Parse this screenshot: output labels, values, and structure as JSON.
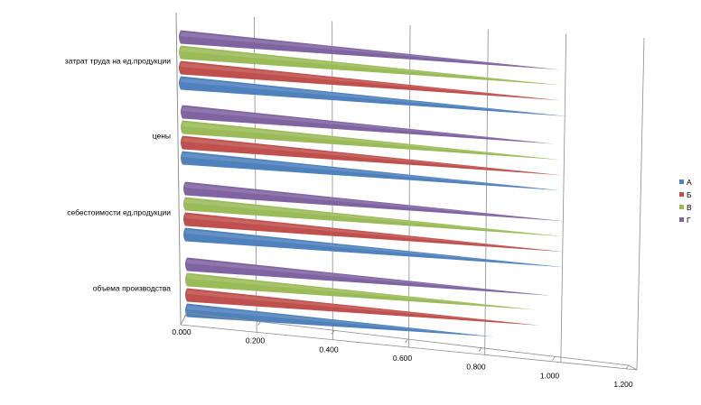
{
  "chart_data": {
    "type": "bar",
    "orientation": "horizontal",
    "style": "3d-cone",
    "categories": [
      "затрат труда на ед.продукции",
      "цены",
      "себестоимости ед.продукции",
      "объема производства"
    ],
    "series": [
      {
        "name": "А",
        "color": "#4f81bd",
        "values": [
          1.02,
          1.0,
          1.0,
          0.81
        ]
      },
      {
        "name": "Б",
        "color": "#c0504d",
        "values": [
          1.0,
          1.0,
          1.0,
          0.93
        ]
      },
      {
        "name": "В",
        "color": "#9bbb59",
        "values": [
          1.0,
          1.0,
          1.0,
          0.92
        ]
      },
      {
        "name": "Г",
        "color": "#8064a2",
        "values": [
          1.0,
          0.98,
          1.0,
          0.96
        ]
      }
    ],
    "x_ticks": [
      "0.000",
      "0.200",
      "0.400",
      "0.600",
      "0.800",
      "1.000",
      "1.200"
    ],
    "xlim": [
      0,
      1.2
    ],
    "grid": true,
    "legend_position": "right"
  }
}
